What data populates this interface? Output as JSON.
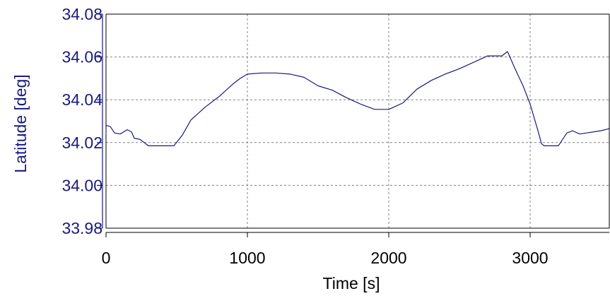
{
  "chart_data": {
    "type": "line",
    "title": "",
    "xlabel": "Time [s]",
    "ylabel": "Latitude [deg]",
    "xlim": [
      0,
      3560
    ],
    "ylim": [
      33.98,
      34.08
    ],
    "x_ticks": [
      "0",
      "1000",
      "2000",
      "3000"
    ],
    "y_ticks": [
      "33.98",
      "34.00",
      "34.02",
      "34.04",
      "34.06",
      "34.08"
    ],
    "grid": true,
    "legend": "none",
    "series": [
      {
        "x": [
          0,
          30,
          60,
          100,
          150,
          180,
          200,
          240,
          300,
          400,
          480,
          540,
          600,
          700,
          800,
          900,
          950,
          1000,
          1100,
          1200,
          1300,
          1400,
          1500,
          1600,
          1700,
          1800,
          1900,
          2000,
          2050,
          2100,
          2200,
          2300,
          2400,
          2500,
          2600,
          2700,
          2800,
          2840,
          2860,
          2900,
          2950,
          3000,
          3060,
          3080,
          3100,
          3150,
          3200,
          3260,
          3300,
          3350,
          3400,
          3450,
          3500,
          3560
        ],
        "values": [
          34.028,
          34.0275,
          34.0245,
          34.024,
          34.026,
          34.025,
          34.022,
          34.0215,
          34.0185,
          34.0185,
          34.0185,
          34.0235,
          34.0305,
          34.0365,
          34.0415,
          34.0475,
          34.05,
          34.052,
          34.0525,
          34.0525,
          34.052,
          34.0505,
          34.0465,
          34.0445,
          34.041,
          34.038,
          34.0355,
          34.0355,
          34.037,
          34.0385,
          34.045,
          34.049,
          34.052,
          34.0545,
          34.0575,
          34.0605,
          34.0605,
          34.0625,
          34.0595,
          34.0535,
          34.0465,
          34.038,
          34.0245,
          34.0195,
          34.0185,
          34.0185,
          34.0185,
          34.0245,
          34.0255,
          34.024,
          34.0245,
          34.025,
          34.0255,
          34.0265
        ]
      }
    ],
    "colors": {
      "axis_text": "#1a1a80",
      "line": "#1a1a80",
      "frame": "#000000",
      "grid": "#808080"
    }
  }
}
